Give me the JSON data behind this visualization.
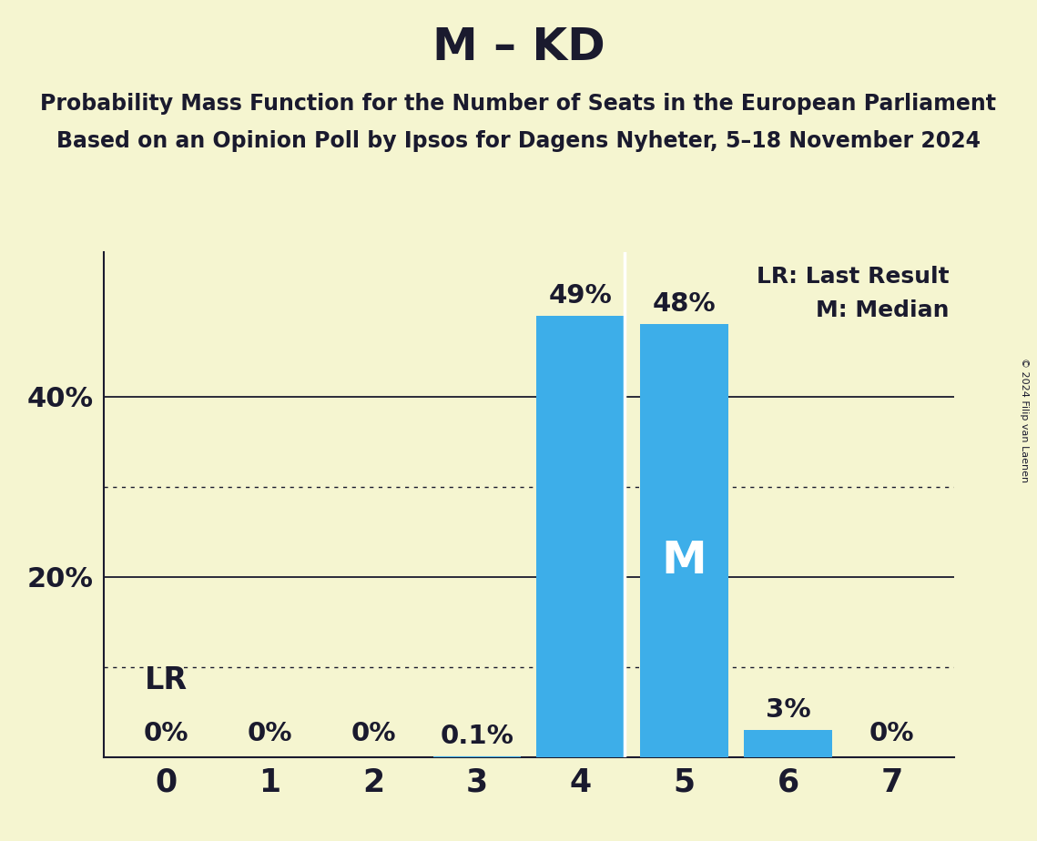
{
  "title": "M – KD",
  "subtitle1": "Probability Mass Function for the Number of Seats in the European Parliament",
  "subtitle2": "Based on an Opinion Poll by Ipsos for Dagens Nyheter, 5–18 November 2024",
  "copyright": "© 2024 Filip van Laenen",
  "categories": [
    0,
    1,
    2,
    3,
    4,
    5,
    6,
    7
  ],
  "values": [
    0.0,
    0.0,
    0.0,
    0.1,
    49.0,
    48.0,
    3.0,
    0.0
  ],
  "bar_color": "#3daee9",
  "background_color": "#f5f5d0",
  "text_color": "#1a1a2e",
  "bar_labels": [
    "0%",
    "0%",
    "0%",
    "0.1%",
    "49%",
    "48%",
    "3%",
    "0%"
  ],
  "median_seat": 5,
  "last_result_seat": 4,
  "legend_lr": "LR: Last Result",
  "legend_m": "M: Median",
  "lr_label": "LR",
  "m_label": "M",
  "ylim": [
    0,
    56
  ],
  "dotted_lines": [
    10,
    30
  ],
  "solid_lines": [
    20,
    40
  ],
  "figsize": [
    11.39,
    9.24
  ],
  "dpi": 100
}
